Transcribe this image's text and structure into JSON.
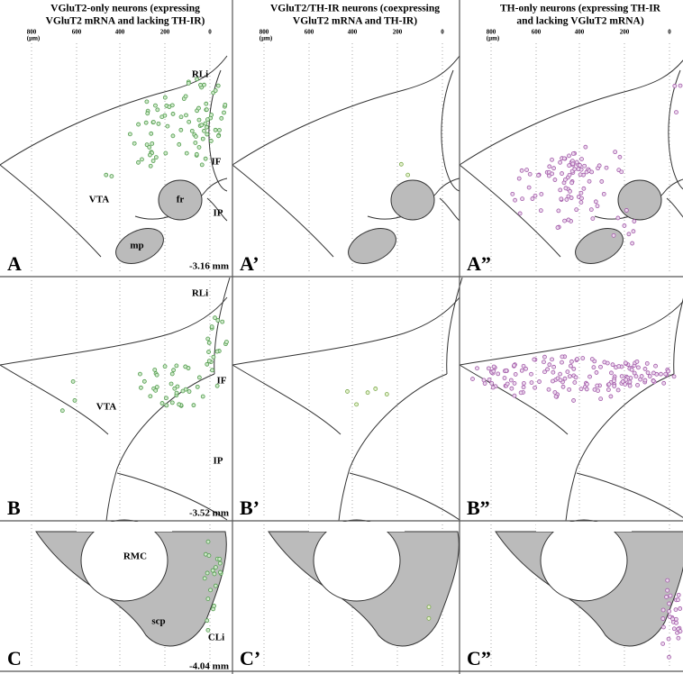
{
  "columns": [
    {
      "title": [
        "VGluT2-only neurons (expressing",
        "VGluT2 mRNA and lacking TH-IR)"
      ],
      "scale": {
        "ticks": [
          800,
          600,
          400,
          200,
          0
        ],
        "unit": "(µm)"
      }
    },
    {
      "title": [
        "VGluT2/TH-IR neurons (coexpressing",
        "VGluT2 mRNA and TH-IR)"
      ],
      "scale": {
        "ticks": [
          800,
          600,
          400,
          200,
          0
        ],
        "unit": "(µm)"
      }
    },
    {
      "title": [
        "TH-only neurons (expressing TH-IR",
        "and lacking VGluT2 mRNA)"
      ],
      "scale": {
        "ticks": [
          800,
          600,
          400,
          200,
          0
        ],
        "unit": "(µm)"
      }
    }
  ],
  "rows": [
    {
      "panels": [
        "A",
        "A’",
        "A”"
      ],
      "regions": [
        "RLi",
        "IF",
        "VTA",
        "fr",
        "IP",
        "mp"
      ],
      "level": "-3.16 mm"
    },
    {
      "panels": [
        "B",
        "B’",
        "B”"
      ],
      "regions": [
        "RLi",
        "VTA",
        "IF",
        "IP"
      ],
      "level": "-3.52 mm"
    },
    {
      "panels": [
        "C",
        "C’",
        "C”"
      ],
      "regions": [
        "RMC",
        "scp",
        "CLi"
      ],
      "level": "-4.04 mm"
    }
  ]
}
